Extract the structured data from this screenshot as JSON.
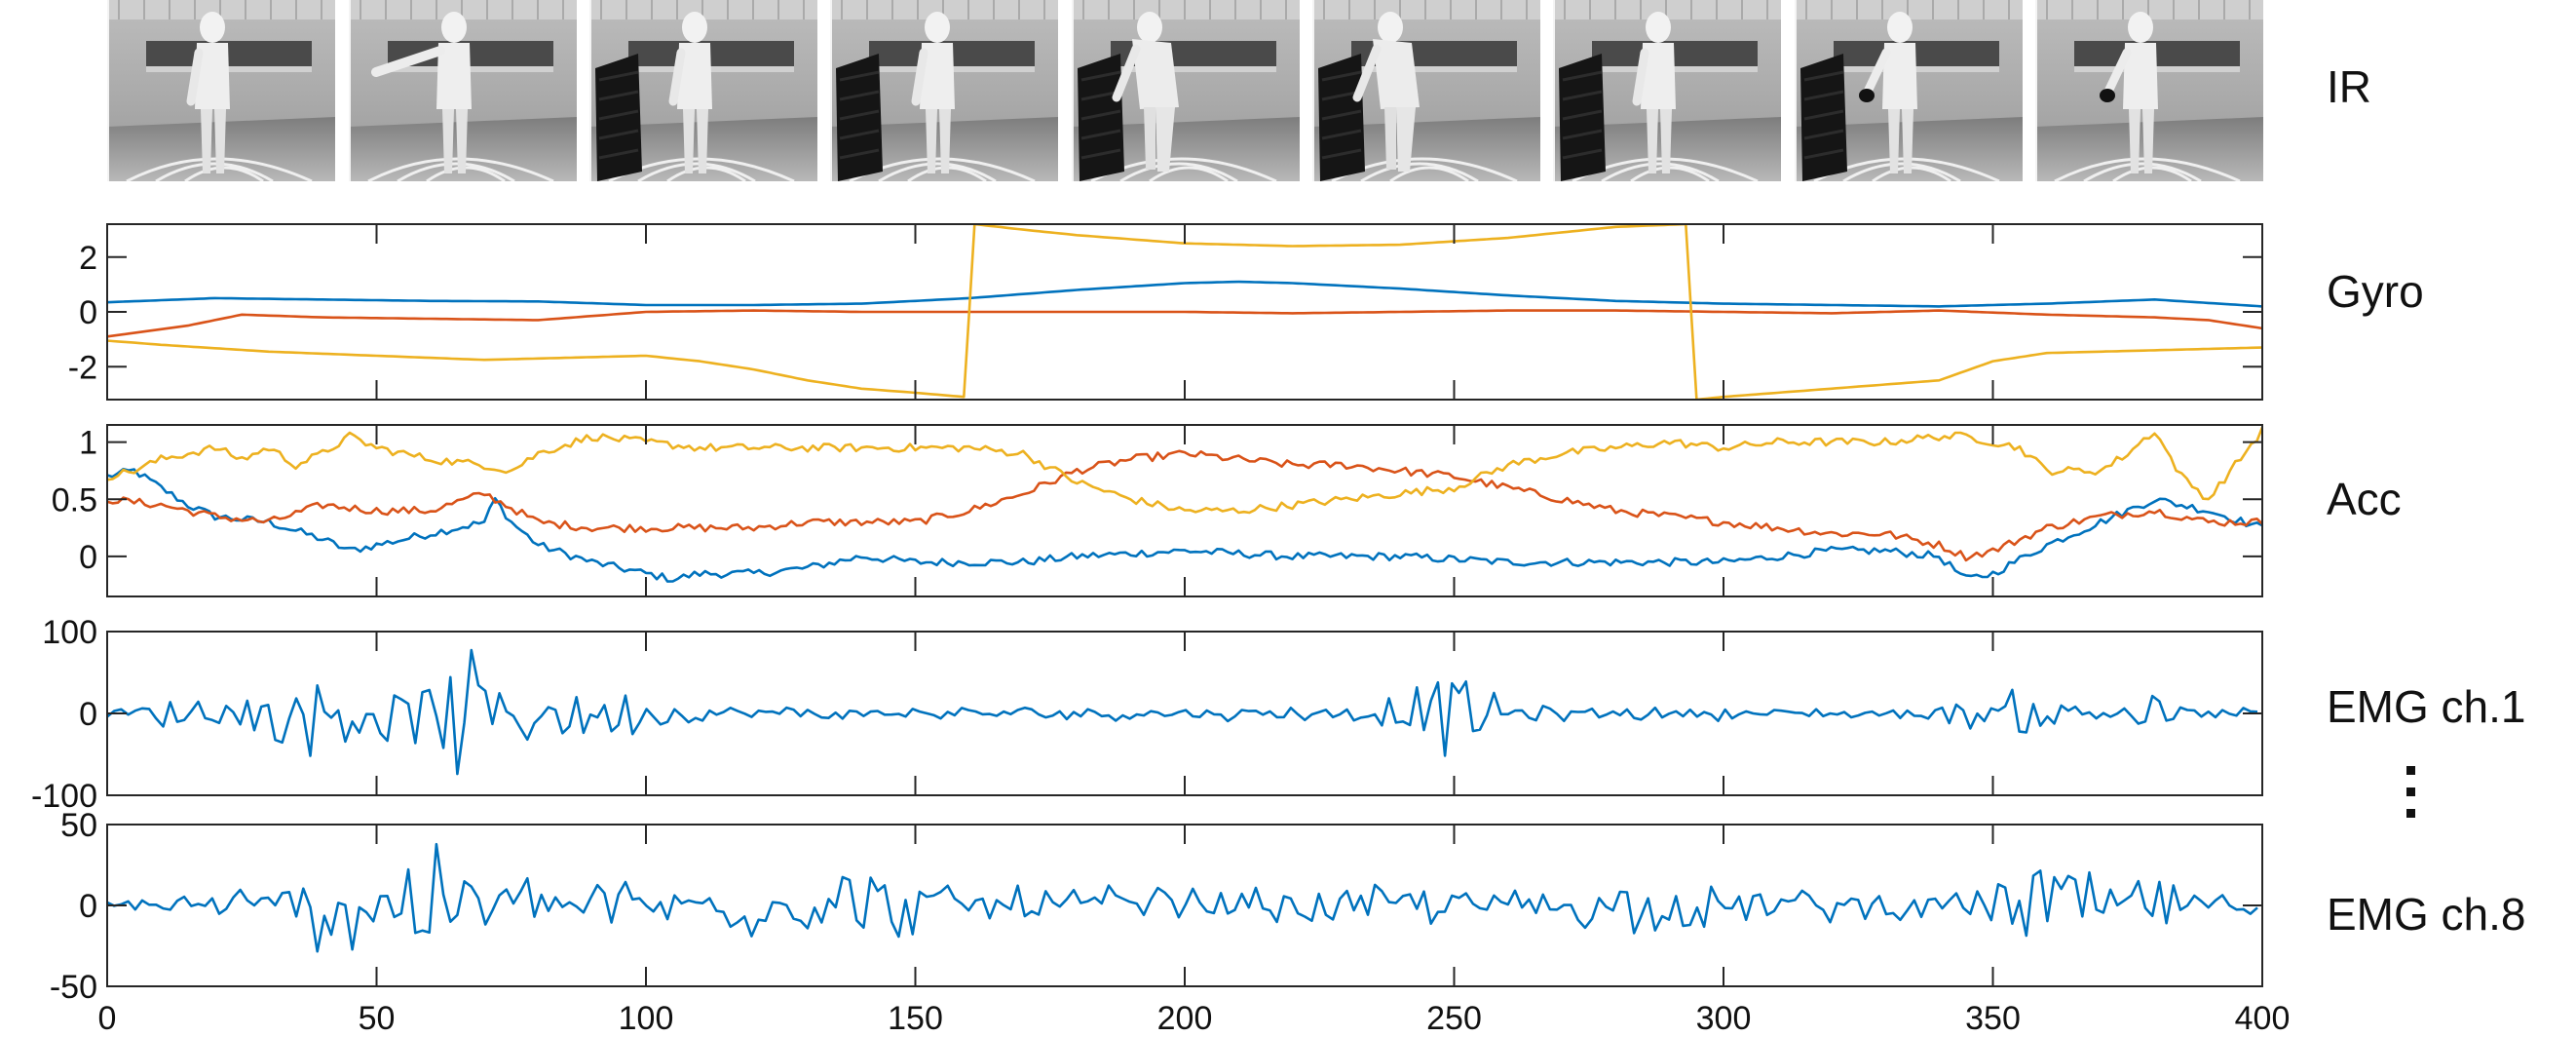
{
  "ir_strip": {
    "label": "IR",
    "frames": [
      {
        "pose": "standing",
        "door": "closed"
      },
      {
        "pose": "arm-reaching",
        "door": "closed"
      },
      {
        "pose": "standing",
        "door": "open"
      },
      {
        "pose": "standing-back",
        "door": "open"
      },
      {
        "pose": "bending",
        "door": "open"
      },
      {
        "pose": "bending",
        "door": "open"
      },
      {
        "pose": "standing",
        "door": "open"
      },
      {
        "pose": "holding-object",
        "door": "open"
      },
      {
        "pose": "holding-object",
        "door": "closed"
      }
    ]
  },
  "row_labels": {
    "gyro": "Gyro",
    "acc": "Acc",
    "emg1": "EMG ch.1",
    "emg8": "EMG ch.8"
  },
  "colors": {
    "blue": "#0072BD",
    "red": "#D95319",
    "yellow": "#EDB120",
    "axis": "#262626"
  },
  "chart_data": [
    {
      "type": "line",
      "name": "Gyro",
      "xlim": [
        0,
        400
      ],
      "ylim": [
        -3.2,
        3.2
      ],
      "yticks": [
        -2,
        0,
        2
      ],
      "ytick_labels": [
        "-2",
        "0",
        "2"
      ],
      "series": [
        {
          "color": "blue",
          "x": [
            0,
            20,
            40,
            60,
            80,
            100,
            120,
            140,
            160,
            180,
            200,
            210,
            220,
            240,
            260,
            280,
            300,
            320,
            340,
            360,
            380,
            400
          ],
          "y": [
            0.35,
            0.5,
            0.45,
            0.4,
            0.38,
            0.25,
            0.25,
            0.3,
            0.5,
            0.8,
            1.05,
            1.1,
            1.05,
            0.85,
            0.6,
            0.4,
            0.3,
            0.25,
            0.2,
            0.3,
            0.45,
            0.2
          ]
        },
        {
          "color": "red",
          "x": [
            0,
            15,
            25,
            40,
            60,
            80,
            100,
            120,
            140,
            160,
            180,
            200,
            220,
            240,
            260,
            280,
            300,
            320,
            340,
            360,
            380,
            390,
            400
          ],
          "y": [
            -0.9,
            -0.5,
            -0.1,
            -0.2,
            -0.25,
            -0.3,
            0.0,
            0.05,
            0.0,
            0.0,
            0.0,
            0.0,
            -0.05,
            0.0,
            0.05,
            0.05,
            0.0,
            -0.05,
            0.05,
            -0.1,
            -0.2,
            -0.3,
            -0.6
          ]
        },
        {
          "color": "yellow",
          "x": [
            0,
            10,
            30,
            50,
            70,
            90,
            100,
            110,
            120,
            130,
            140,
            150,
            159,
            160,
            161,
            170,
            180,
            200,
            220,
            240,
            260,
            280,
            293,
            294,
            295,
            300,
            320,
            330,
            340,
            350,
            360,
            380,
            400
          ],
          "y": [
            -1.05,
            -1.2,
            -1.45,
            -1.6,
            -1.75,
            -1.65,
            -1.6,
            -1.8,
            -2.1,
            -2.5,
            -2.8,
            -2.95,
            -3.1,
            0.0,
            3.2,
            3.0,
            2.8,
            2.5,
            2.4,
            2.45,
            2.7,
            3.1,
            3.2,
            0.0,
            -3.2,
            -3.1,
            -2.8,
            -2.65,
            -2.5,
            -1.8,
            -1.5,
            -1.4,
            -1.3
          ]
        }
      ]
    },
    {
      "type": "line",
      "name": "Acc",
      "xlim": [
        0,
        400
      ],
      "ylim": [
        -0.35,
        1.15
      ],
      "yticks": [
        0,
        0.5,
        1
      ],
      "ytick_labels": [
        "0",
        "0.5",
        "1"
      ],
      "series": [
        {
          "color": "blue",
          "x": [
            0,
            5,
            10,
            15,
            20,
            30,
            40,
            45,
            50,
            60,
            70,
            72,
            75,
            80,
            90,
            100,
            105,
            110,
            120,
            130,
            140,
            150,
            160,
            170,
            180,
            200,
            220,
            240,
            260,
            280,
            300,
            320,
            330,
            340,
            345,
            350,
            360,
            370,
            380,
            390,
            400
          ],
          "y": [
            0.7,
            0.75,
            0.6,
            0.45,
            0.35,
            0.3,
            0.15,
            0.05,
            0.1,
            0.2,
            0.3,
            0.5,
            0.3,
            0.1,
            -0.05,
            -0.15,
            -0.2,
            -0.15,
            -0.15,
            -0.1,
            0.0,
            -0.05,
            -0.05,
            -0.05,
            0.0,
            0.05,
            0.0,
            0.0,
            -0.05,
            -0.05,
            -0.05,
            0.05,
            0.05,
            0.0,
            -0.2,
            -0.15,
            0.1,
            0.3,
            0.5,
            0.4,
            0.25
          ]
        },
        {
          "color": "red",
          "x": [
            0,
            10,
            20,
            30,
            40,
            50,
            60,
            70,
            80,
            90,
            100,
            110,
            120,
            130,
            140,
            150,
            160,
            170,
            180,
            190,
            200,
            210,
            220,
            230,
            240,
            250,
            260,
            270,
            280,
            290,
            300,
            310,
            320,
            330,
            340,
            345,
            350,
            360,
            370,
            380,
            390,
            400
          ],
          "y": [
            0.5,
            0.45,
            0.35,
            0.3,
            0.45,
            0.4,
            0.4,
            0.55,
            0.3,
            0.25,
            0.25,
            0.25,
            0.25,
            0.3,
            0.3,
            0.3,
            0.4,
            0.55,
            0.75,
            0.85,
            0.9,
            0.85,
            0.8,
            0.8,
            0.75,
            0.7,
            0.6,
            0.5,
            0.4,
            0.35,
            0.3,
            0.25,
            0.2,
            0.2,
            0.1,
            0.0,
            0.05,
            0.25,
            0.35,
            0.4,
            0.3,
            0.3
          ]
        },
        {
          "color": "yellow",
          "x": [
            0,
            5,
            10,
            15,
            20,
            25,
            30,
            35,
            40,
            45,
            50,
            60,
            70,
            75,
            80,
            90,
            100,
            110,
            120,
            130,
            140,
            150,
            160,
            170,
            180,
            190,
            200,
            210,
            220,
            230,
            240,
            250,
            260,
            270,
            280,
            290,
            300,
            310,
            320,
            330,
            340,
            345,
            350,
            355,
            360,
            370,
            375,
            380,
            385,
            390,
            395,
            400
          ],
          "y": [
            0.7,
            0.75,
            0.85,
            0.9,
            0.95,
            0.85,
            0.95,
            0.8,
            0.9,
            1.05,
            0.95,
            0.85,
            0.8,
            0.75,
            0.9,
            1.05,
            1.0,
            0.95,
            0.95,
            0.95,
            0.95,
            0.95,
            0.95,
            0.9,
            0.65,
            0.5,
            0.4,
            0.4,
            0.45,
            0.5,
            0.55,
            0.6,
            0.8,
            0.9,
            0.95,
            1.0,
            0.95,
            1.0,
            1.0,
            1.0,
            1.05,
            1.05,
            1.0,
            0.95,
            0.75,
            0.75,
            0.9,
            1.1,
            0.7,
            0.5,
            0.8,
            1.1
          ]
        }
      ]
    },
    {
      "type": "line",
      "name": "EMG ch.1",
      "xlim": [
        0,
        400
      ],
      "ylim": [
        -100,
        100
      ],
      "yticks": [
        -100,
        0,
        100
      ],
      "ytick_labels": [
        "-100",
        "0",
        "100"
      ],
      "series": [
        {
          "color": "blue",
          "x": [
            0,
            20,
            40,
            60,
            80,
            100,
            120,
            140,
            160,
            180,
            200,
            220,
            240,
            250,
            260,
            280,
            300,
            320,
            340,
            350,
            360,
            370,
            380,
            400
          ],
          "y": [
            0,
            0,
            0,
            0,
            0,
            0,
            0,
            0,
            0,
            0,
            0,
            0,
            0,
            0,
            0,
            0,
            0,
            0,
            0,
            0,
            0,
            0,
            0,
            0
          ],
          "envelope_x": [
            0,
            10,
            20,
            30,
            35,
            40,
            45,
            50,
            55,
            60,
            65,
            70,
            75,
            80,
            85,
            90,
            95,
            100,
            105,
            110,
            120,
            130,
            140,
            150,
            160,
            170,
            180,
            190,
            200,
            210,
            220,
            230,
            240,
            245,
            248,
            250,
            255,
            260,
            270,
            280,
            290,
            300,
            310,
            320,
            330,
            340,
            345,
            350,
            355,
            360,
            365,
            370,
            375,
            380,
            385,
            390,
            400
          ],
          "envelope": [
            10,
            18,
            35,
            40,
            55,
            60,
            85,
            35,
            50,
            40,
            90,
            70,
            60,
            45,
            50,
            40,
            35,
            30,
            15,
            12,
            10,
            10,
            8,
            10,
            8,
            10,
            12,
            10,
            10,
            10,
            12,
            10,
            30,
            50,
            60,
            60,
            50,
            15,
            10,
            10,
            8,
            10,
            8,
            8,
            6,
            12,
            20,
            25,
            40,
            30,
            20,
            25,
            50,
            40,
            10,
            8,
            8
          ]
        }
      ]
    },
    {
      "type": "line",
      "name": "EMG ch.8",
      "xlim": [
        0,
        400
      ],
      "ylim": [
        -50,
        50
      ],
      "yticks": [
        -50,
        0,
        50
      ],
      "ytick_labels": [
        "-50",
        "0",
        "50"
      ],
      "series": [
        {
          "color": "blue",
          "x": [
            0,
            20,
            40,
            60,
            80,
            100,
            120,
            140,
            160,
            180,
            200,
            220,
            240,
            260,
            280,
            300,
            320,
            340,
            350,
            360,
            370,
            380,
            400
          ],
          "y": [
            0,
            0,
            0,
            0,
            0,
            0,
            0,
            0,
            0,
            0,
            0,
            0,
            0,
            0,
            0,
            0,
            0,
            0,
            0,
            0,
            0,
            0,
            0
          ],
          "envelope_x": [
            0,
            10,
            20,
            30,
            35,
            40,
            45,
            50,
            55,
            60,
            65,
            70,
            75,
            80,
            85,
            90,
            95,
            100,
            110,
            120,
            130,
            140,
            150,
            160,
            170,
            180,
            190,
            200,
            210,
            220,
            230,
            240,
            250,
            260,
            270,
            280,
            290,
            300,
            310,
            320,
            330,
            340,
            345,
            350,
            355,
            360,
            365,
            370,
            375,
            380,
            390,
            400
          ],
          "envelope": [
            5,
            8,
            12,
            15,
            20,
            40,
            45,
            30,
            35,
            40,
            45,
            48,
            30,
            20,
            18,
            25,
            22,
            15,
            20,
            25,
            20,
            40,
            18,
            15,
            18,
            15,
            15,
            15,
            12,
            15,
            15,
            15,
            15,
            15,
            15,
            18,
            20,
            15,
            12,
            12,
            10,
            10,
            10,
            15,
            40,
            45,
            40,
            25,
            20,
            25,
            8,
            5
          ]
        }
      ]
    }
  ],
  "x_axis": {
    "ticks": [
      0,
      50,
      100,
      150,
      200,
      250,
      300,
      350,
      400
    ],
    "tick_labels": [
      "0",
      "50",
      "100",
      "150",
      "200",
      "250",
      "300",
      "350",
      "400"
    ]
  }
}
